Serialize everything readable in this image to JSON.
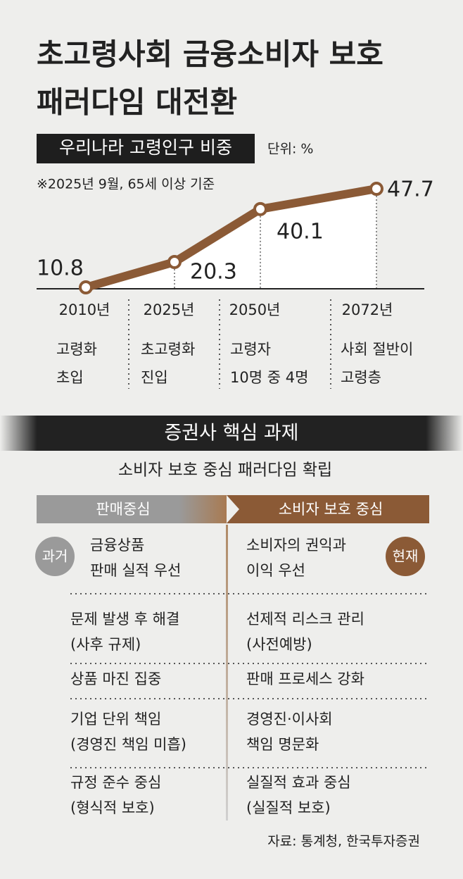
{
  "title_lines": [
    "초고령사회 금융소비자 보호",
    "패러다임 대전환"
  ],
  "chart_data": {
    "type": "line",
    "title": "우리나라 고령인구 비중",
    "unit": "단위: %",
    "note": "※2025년 9월, 65세 이상 기준",
    "categories": [
      "2010년",
      "2025년",
      "2050년",
      "2072년"
    ],
    "values": [
      10.8,
      20.3,
      40.1,
      47.7
    ],
    "color": "#8b5a36",
    "descriptions": [
      [
        "고령화",
        "초입"
      ],
      [
        "초고령화",
        "진입"
      ],
      [
        "고령자",
        "10명 중 4명"
      ],
      [
        "사회 절반이",
        "고령층"
      ]
    ]
  },
  "tasks": {
    "title": "증권사 핵심 과제",
    "subtitle": "소비자 보호 중심 패러다임 확립",
    "left_header": "판매중심",
    "right_header": "소비자 보호 중심",
    "left_badge": "과거",
    "right_badge": "현재",
    "rows": [
      {
        "left": [
          "금융상품",
          "판매 실적 우선"
        ],
        "right": [
          "소비자의 권익과",
          "이익 우선"
        ]
      },
      {
        "left": [
          "문제 발생 후 해결",
          "(사후 규제)"
        ],
        "right": [
          "선제적 리스크 관리",
          "(사전예방)"
        ]
      },
      {
        "left": [
          "상품 마진 집중"
        ],
        "right": [
          "판매 프로세스 강화"
        ]
      },
      {
        "left": [
          "기업 단위 책임",
          "(경영진 책임 미흡)"
        ],
        "right": [
          "경영진·이사회",
          "책임 명문화"
        ]
      },
      {
        "left": [
          "규정 준수 중심",
          "(형식적 보호)"
        ],
        "right": [
          "실질적 효과 중심",
          "(실질적 보호)"
        ]
      }
    ]
  },
  "source": "자료: 통계청, 한국투자증권"
}
